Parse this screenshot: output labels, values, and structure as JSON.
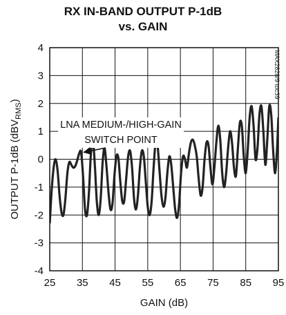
{
  "chart_data": {
    "type": "line",
    "title_line1": "RX IN-BAND OUTPUT P-1dB",
    "title_line2": "vs. GAIN",
    "xlabel": "GAIN (dB)",
    "ylabel_main": "OUTPUT P-1dB (dBV",
    "ylabel_sub": "RMS",
    "ylabel_close": ")",
    "xlim": [
      25,
      95
    ],
    "ylim": [
      -4,
      4
    ],
    "x_ticks": [
      25,
      35,
      45,
      55,
      65,
      75,
      85,
      95
    ],
    "x_tick_labels": [
      "25",
      "35",
      "45",
      "55",
      "65",
      "75",
      "85",
      "95"
    ],
    "y_ticks": [
      -4,
      -3,
      -2,
      -1,
      0,
      1,
      2,
      3,
      4
    ],
    "y_tick_labels": [
      "-4",
      "-3",
      "-2",
      "-1",
      "0",
      "1",
      "2",
      "3",
      "4"
    ],
    "grid": true,
    "annotation": {
      "line1": "LNA MEDIUM-/HIGH-GAIN",
      "line2": "SWITCH POINT",
      "arrow_to": [
        34.8,
        0.2
      ]
    },
    "part_number": "MAX2828/9 toc39",
    "series": [
      {
        "color": "#222222",
        "x": [
          25.0,
          25.6,
          26.2,
          26.8,
          27.4,
          28.0,
          28.6,
          29.2,
          29.8,
          30.4,
          31.0,
          31.6,
          32.2,
          32.8,
          33.4,
          34.0,
          34.6,
          35.2,
          35.8,
          36.4,
          37.0,
          37.6,
          38.2,
          38.8,
          39.4,
          40.0,
          40.6,
          41.2,
          41.8,
          42.4,
          43.0,
          43.6,
          44.2,
          44.8,
          45.4,
          46.0,
          46.6,
          47.2,
          47.8,
          48.4,
          49.0,
          49.6,
          50.2,
          50.8,
          51.4,
          52.0,
          52.6,
          53.2,
          53.8,
          54.4,
          55.0,
          55.6,
          56.2,
          56.8,
          57.4,
          58.0,
          58.6,
          59.2,
          59.8,
          60.4,
          61.0,
          61.6,
          62.2,
          62.8,
          63.4,
          64.0,
          64.6,
          65.2,
          65.8,
          66.4,
          67.0,
          67.6,
          68.2,
          68.8,
          69.4,
          70.0,
          70.6,
          71.2,
          71.8,
          72.4,
          73.0,
          73.6,
          74.2,
          74.8,
          75.4,
          76.0,
          76.6,
          77.2,
          77.8,
          78.4,
          79.0,
          79.6,
          80.2,
          80.8,
          81.4,
          82.0,
          82.6,
          83.2,
          83.8,
          84.4,
          85.0,
          85.6,
          86.2,
          86.8,
          87.4,
          88.0,
          88.6,
          89.2,
          89.8,
          90.4,
          91.0,
          91.6,
          92.2,
          92.8,
          93.4,
          94.0,
          94.6,
          95.0
        ],
        "y": [
          -2.3,
          -1.1,
          -0.3,
          0.0,
          -0.4,
          -1.3,
          -1.9,
          -2.0,
          -1.4,
          -0.5,
          -0.1,
          -0.2,
          -0.3,
          -0.25,
          -0.05,
          0.2,
          0.25,
          -0.6,
          -1.8,
          -2.0,
          -1.2,
          0.2,
          0.7,
          -0.2,
          -1.5,
          -2.0,
          -1.4,
          -0.1,
          0.4,
          -0.3,
          -1.2,
          -1.8,
          -1.6,
          -0.6,
          0.1,
          0.05,
          -0.8,
          -1.5,
          -1.5,
          -0.7,
          0.1,
          0.3,
          -0.3,
          -1.4,
          -1.8,
          -1.3,
          -0.3,
          0.3,
          0.1,
          -0.8,
          -1.7,
          -2.0,
          -1.5,
          -0.3,
          0.6,
          0.5,
          -0.4,
          -1.3,
          -1.7,
          -1.4,
          -0.5,
          0.1,
          -0.2,
          -1.0,
          -1.8,
          -2.1,
          -1.6,
          -0.5,
          0.1,
          0.0,
          -0.3,
          0.2,
          0.6,
          0.7,
          0.5,
          0.1,
          -0.7,
          -1.3,
          -1.0,
          0.0,
          0.6,
          0.5,
          -0.3,
          -0.9,
          -0.3,
          0.6,
          1.2,
          0.7,
          -0.5,
          -1.0,
          -0.5,
          0.4,
          1.0,
          0.6,
          -0.3,
          -0.6,
          0.4,
          1.3,
          1.2,
          0.1,
          -0.5,
          0.3,
          1.5,
          1.9,
          1.2,
          0.0,
          0.4,
          1.6,
          1.9,
          1.0,
          -0.2,
          0.7,
          1.9,
          1.6,
          0.3,
          -0.5,
          0.4,
          1.5
        ]
      }
    ]
  }
}
